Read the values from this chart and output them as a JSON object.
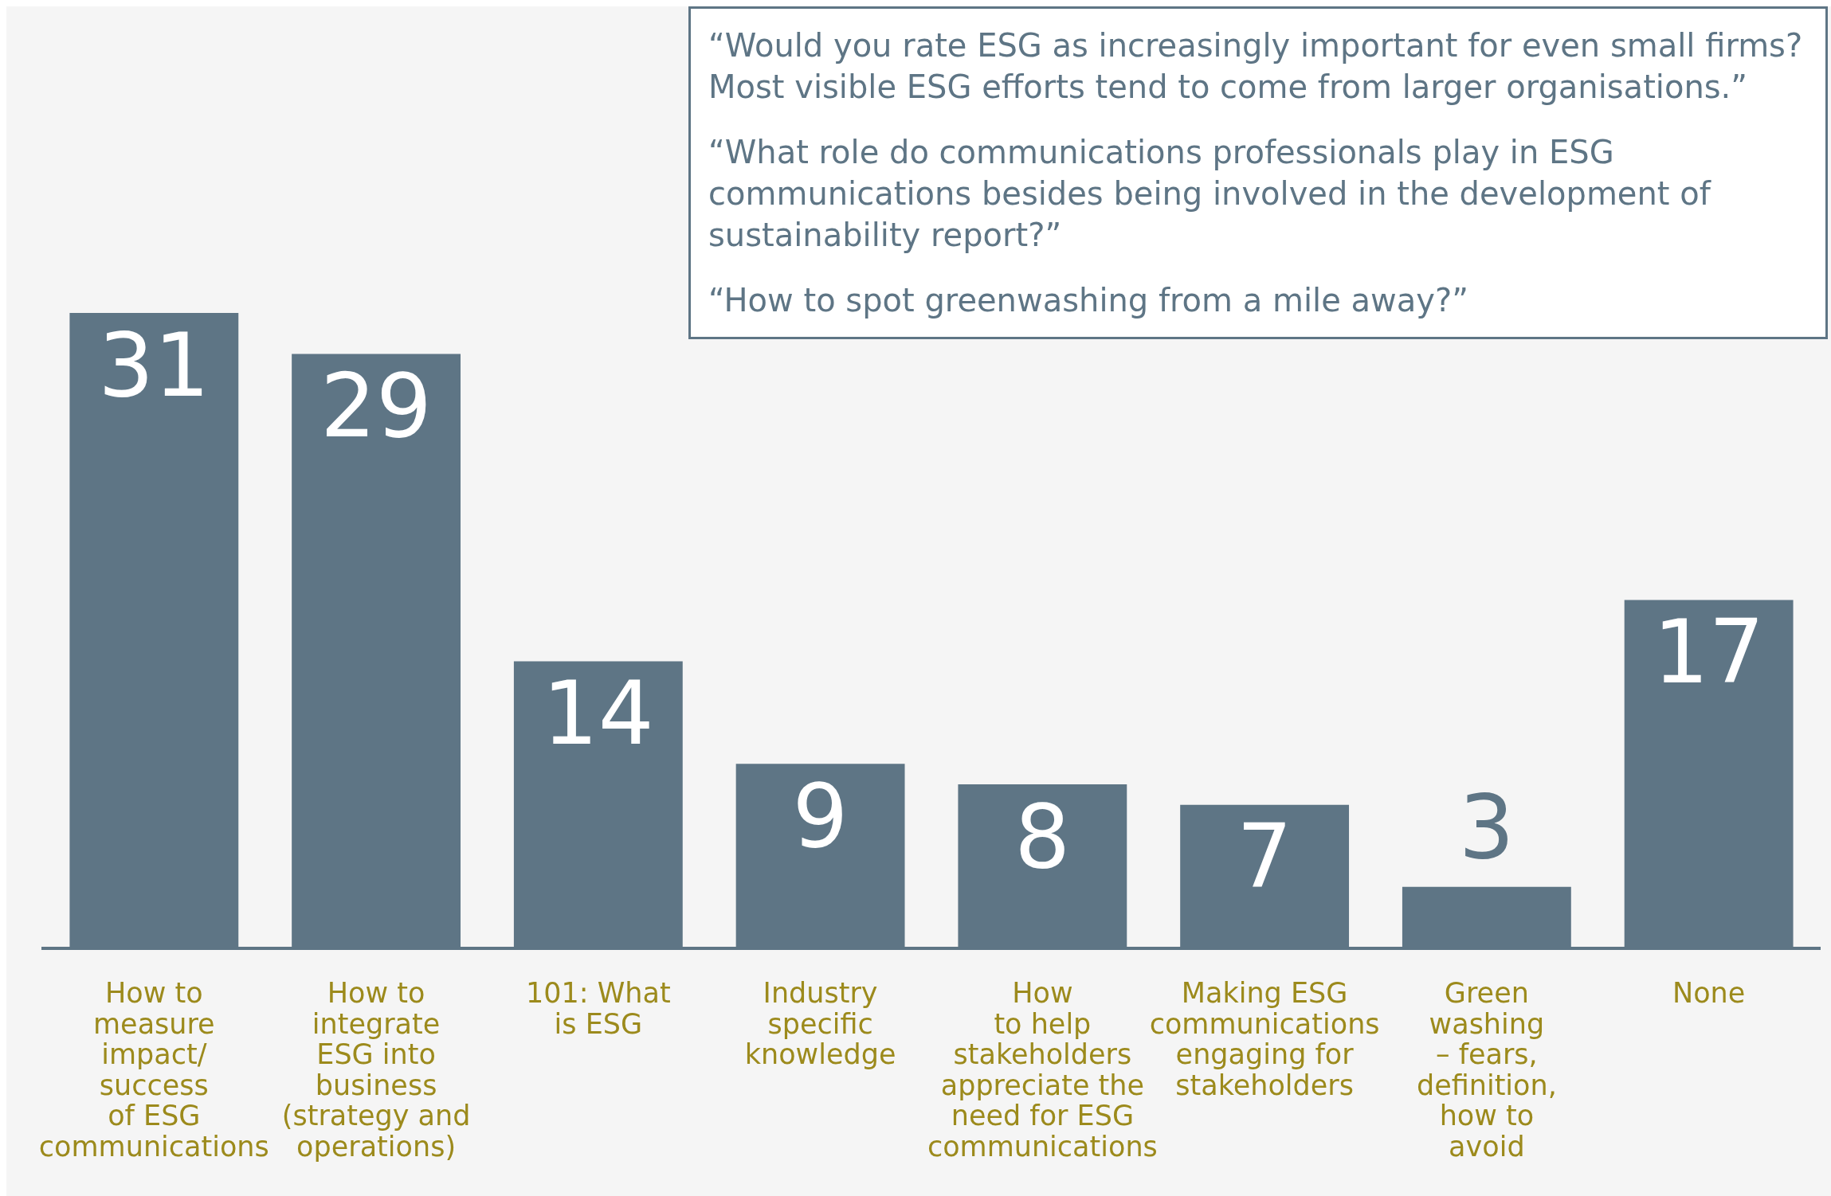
{
  "chart_data": {
    "type": "bar",
    "categories": [
      "How to\nmeasure\nimpact/\nsuccess\nof ESG\ncommunications",
      "How to\nintegrate\nESG into\nbusiness\n(strategy and\noperations)",
      "101: What\nis ESG",
      "Industry\nspecific\nknowledge",
      "How\nto help\nstakeholders\nappreciate the\nneed for ESG\ncommunications",
      "Making ESG\ncommunications\nengaging for\nstakeholders",
      "Green\nwashing\n– fears,\ndefinition,\nhow to\navoid",
      "None"
    ],
    "values": [
      31,
      29,
      14,
      9,
      8,
      7,
      3,
      17
    ],
    "color": "#5e7585",
    "data_labels": true,
    "annotations": [
      "“Would you rate ESG as increasingly important for even small firms? Most visible ESG efforts tend to come from larger organisations.”",
      "“What role do communications professionals play in ESG communications besides being involved in the development of sustainability report?”",
      "“How to spot greenwashing from a mile away?”"
    ]
  }
}
